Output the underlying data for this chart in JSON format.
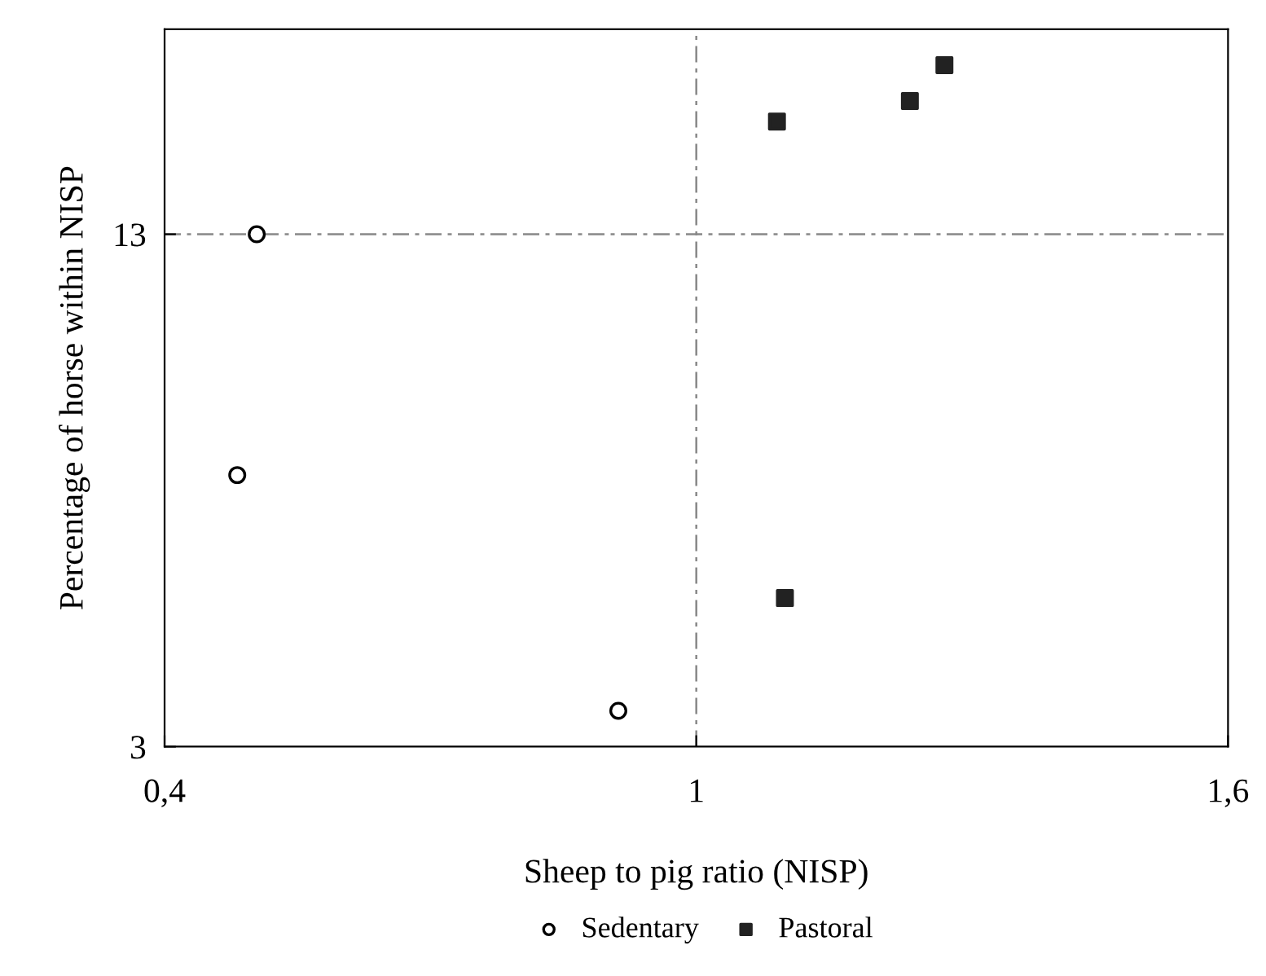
{
  "chart_data": {
    "type": "scatter",
    "xlabel": "Sheep to pig ratio (NISP)",
    "ylabel": "Percentage of horse within NISP",
    "xlim": [
      0.4,
      1.6
    ],
    "xticks": [
      {
        "value": 0.4,
        "label": "0,4"
      },
      1,
      {
        "value": 1.6,
        "label": "1,6"
      }
    ],
    "ylim": [
      3,
      17
    ],
    "yticks": [
      3,
      13
    ],
    "series": [
      {
        "name": "Sedentary",
        "color": "#000000",
        "marker": "circle",
        "x": [
          0.504,
          0.482,
          0.912
        ],
        "values": [
          13.0,
          8.3,
          3.7
        ]
      },
      {
        "name": "Pastoral",
        "color": "#222222",
        "marker": "square",
        "x": [
          1.091,
          1.241,
          1.28,
          1.1
        ],
        "values": [
          15.2,
          15.6,
          16.3,
          5.9
        ]
      }
    ],
    "ref_lines": [
      {
        "axis": "y",
        "value": 13,
        "color": "#888888",
        "line_style": "dashed"
      },
      {
        "axis": "x",
        "value": 1,
        "color": "#888888",
        "line_style": "dashed"
      }
    ],
    "legend": "bottom",
    "grid": false
  }
}
